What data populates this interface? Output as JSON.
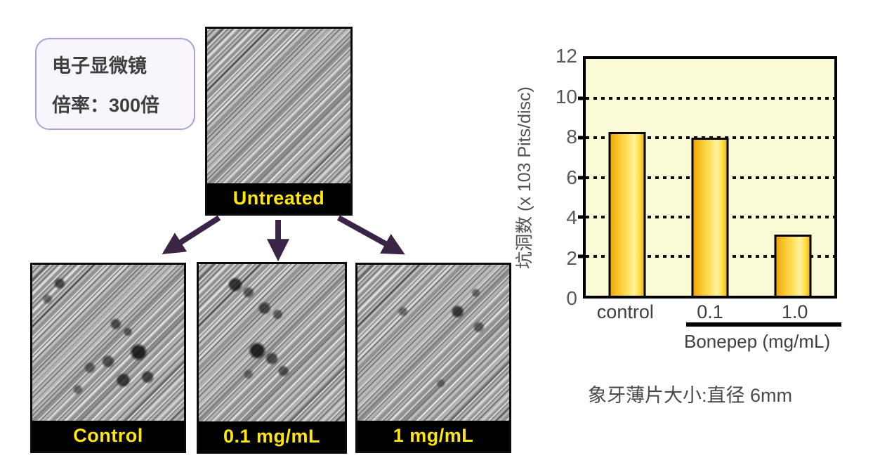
{
  "info_box": {
    "line1": "电子显微镜",
    "line2": "倍率：300倍"
  },
  "panels": {
    "untreated": {
      "label": "Untreated"
    },
    "control": {
      "label": "Control"
    },
    "dose01": {
      "label": "0.1 mg/mL"
    },
    "dose1": {
      "label": "1 mg/mL"
    }
  },
  "chart_data": {
    "type": "bar",
    "categories": [
      "control",
      "0.1",
      "1.0"
    ],
    "values": [
      8.3,
      8.0,
      3.1
    ],
    "title": "",
    "xlabel": "Bonepep (mg/mL)",
    "ylabel": "坑洞数 (x 103 Pits/disc)",
    "yticks": [
      0,
      2,
      4,
      6,
      8,
      10,
      12
    ],
    "ylim": [
      0,
      12
    ],
    "gridlines": [
      2,
      4,
      6,
      8,
      10
    ],
    "grid_style": "dotted",
    "legend": "none",
    "plot_bg": "#FAFAD6",
    "bar_fill": "#FFD42A",
    "bar_border": "#000000"
  },
  "caption": "象牙薄片大小:直径 6mm",
  "colors": {
    "arrow": "#3B2547",
    "info_box_border": "#AF9DD6",
    "panel_label_yellow": "#FFE60A"
  }
}
